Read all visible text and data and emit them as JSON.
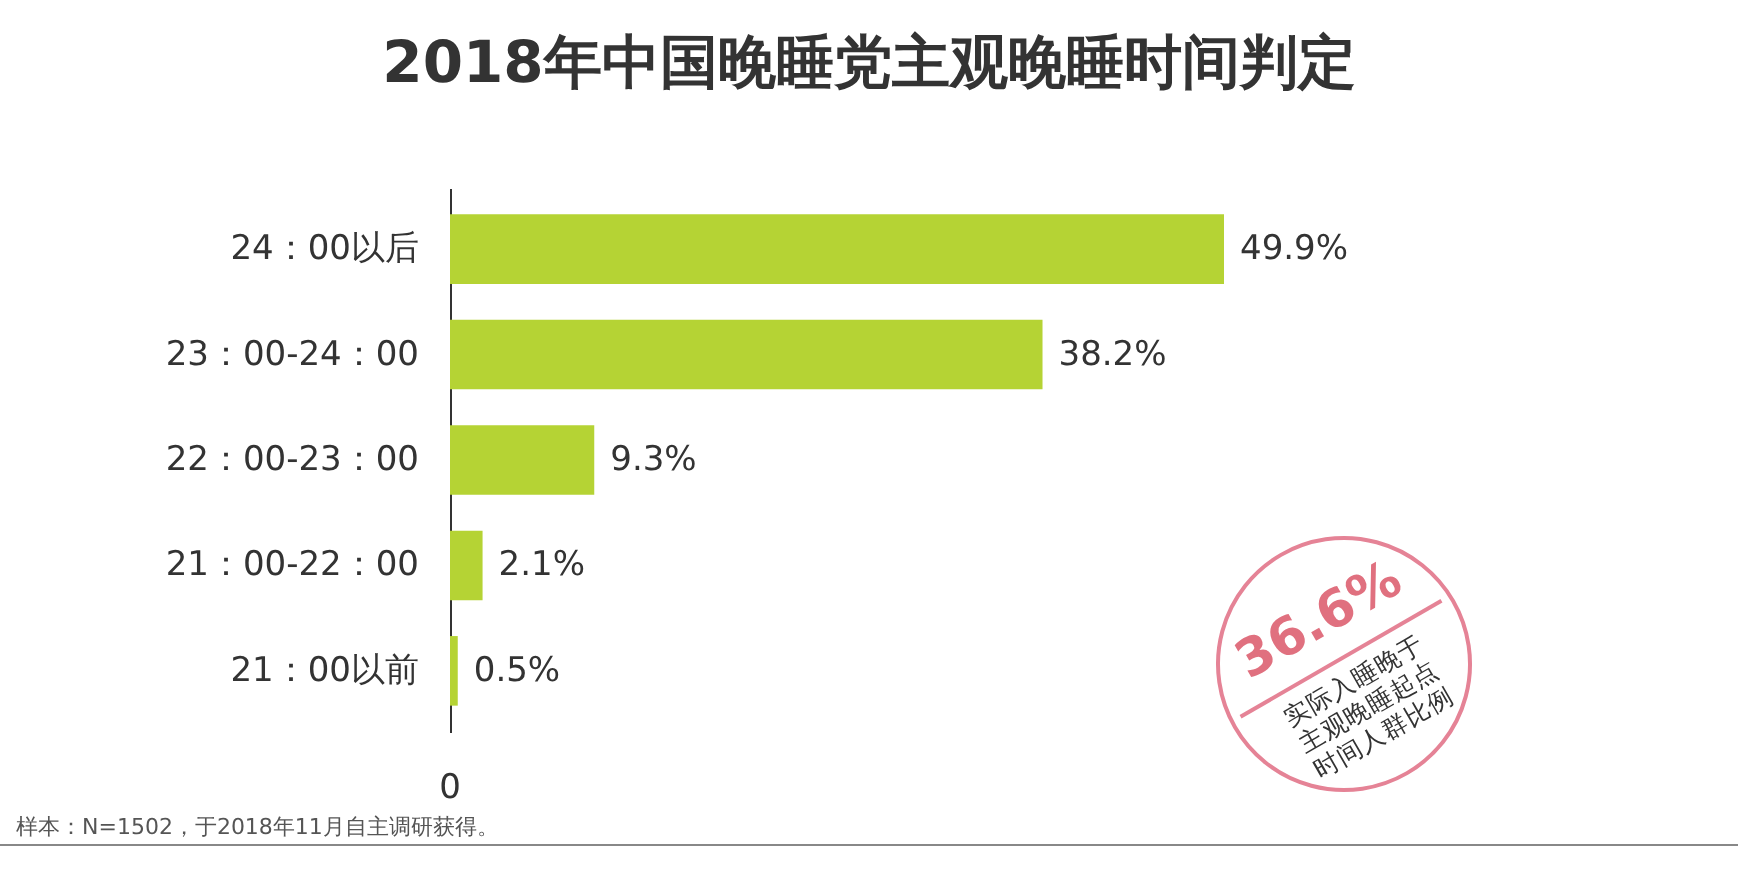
{
  "chart_data": {
    "type": "bar",
    "title": "2018年中国晚睡党主观晚睡时间判定",
    "orientation": "horizontal",
    "categories": [
      "24：00以后",
      "23：00-24：00",
      "22：00-23：00",
      "21：00-22：00",
      "21：00以前"
    ],
    "values": [
      49.9,
      38.2,
      9.3,
      2.1,
      0.5
    ],
    "value_labels": [
      "49.9%",
      "38.2%",
      "9.3%",
      "2.1%",
      "0.5%"
    ],
    "color": "#b5d334",
    "annotations": [
      "0",
      "36.6%",
      "实际入睡晚于主观晚睡起点时间人群比例",
      "样本：N=1502，于2018年11月自主调研获得。"
    ]
  }
}
